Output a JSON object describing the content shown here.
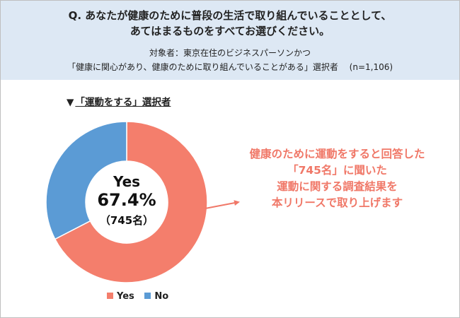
{
  "header": {
    "question_line1": "Q. あなたが健康のために普段の生活で取り組んでいることとして、",
    "question_line2": "あてはまるものをすべてお選びください。",
    "target_line1": "対象者：東京在住のビジネスパーソンかつ",
    "target_line2": "「健康に関心があり、健康のために取り組んでいることがある」選択者　 (n=1,106)"
  },
  "subtitle": {
    "marker": "▼",
    "text": "「運動をする」選択者"
  },
  "center": {
    "label": "Yes",
    "percent": "67.4%",
    "count": "（745名）"
  },
  "annotation": {
    "lines": [
      "健康のために運動をすると回答した",
      "「745名」に聞いた",
      "運動に関する調査結果を",
      "本リリースで取り上げます"
    ]
  },
  "colors": {
    "yes": "#f47e6c",
    "no": "#5b9bd5",
    "annotation": "#f07868",
    "header_bg": "#dde8f4"
  },
  "chart_data": {
    "type": "pie",
    "categories": [
      "Yes",
      "No"
    ],
    "values": [
      67.4,
      32.6
    ],
    "legend": "bottom"
  }
}
